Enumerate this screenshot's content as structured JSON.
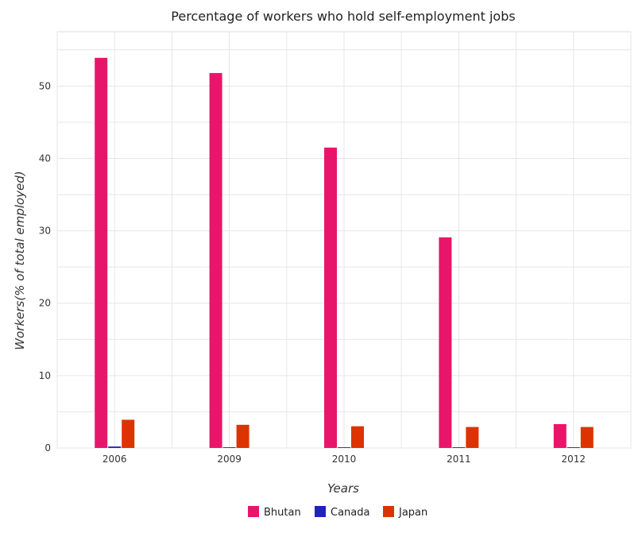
{
  "chart_data": {
    "type": "bar",
    "title": "Percentage of workers who hold self-employment jobs",
    "xlabel": "Years",
    "ylabel": "Workers(% of total employed)",
    "categories": [
      "2006",
      "2009",
      "2010",
      "2011",
      "2012"
    ],
    "series": [
      {
        "name": "Bhutan",
        "color": "#e8166a",
        "values": [
          53.9,
          51.8,
          41.5,
          29.1,
          3.3
        ]
      },
      {
        "name": "Canada",
        "color": "#2222bb",
        "values": [
          0.2,
          0.1,
          0.1,
          0.1,
          0.1
        ]
      },
      {
        "name": "Japan",
        "color": "#dd3300",
        "values": [
          3.9,
          3.2,
          3.0,
          2.9,
          2.9
        ]
      }
    ],
    "ylim": [
      0,
      57.5
    ],
    "yticks": [
      0,
      10,
      20,
      30,
      40,
      50
    ],
    "grid": true,
    "legend_position": "bottom-center"
  }
}
